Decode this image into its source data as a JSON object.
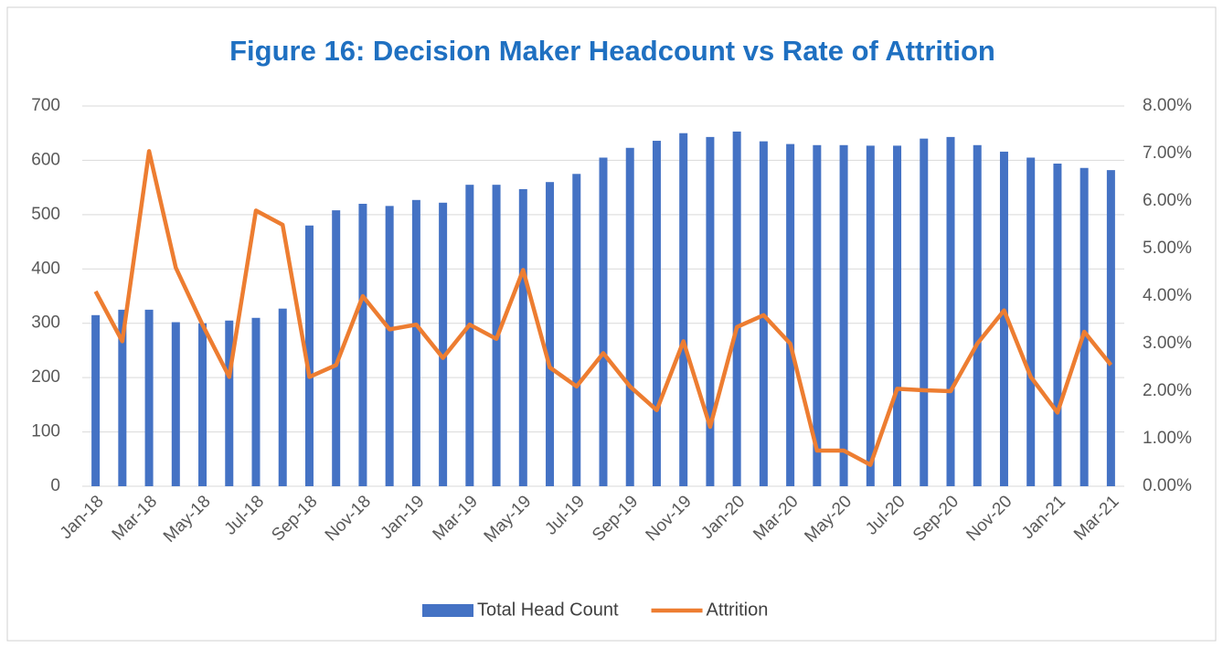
{
  "chart_data": {
    "type": "bar_line",
    "title": "Figure 16: Decision Maker Headcount vs Rate of Attrition",
    "categories": [
      "Jan-18",
      null,
      "Mar-18",
      null,
      "May-18",
      null,
      "Jul-18",
      null,
      "Sep-18",
      null,
      "Nov-18",
      null,
      "Jan-19",
      null,
      "Mar-19",
      null,
      "May-19",
      null,
      "Jul-19",
      null,
      "Sep-19",
      null,
      "Nov-19",
      null,
      "Jan-20",
      null,
      "Mar-20",
      null,
      "May-20",
      null,
      "Jul-20",
      null,
      "Sep-20",
      null,
      "Nov-20",
      null,
      "Jan-21",
      null,
      "Mar-21"
    ],
    "series": [
      {
        "name": "Total Head Count",
        "color": "#4472c4",
        "type": "bar",
        "values": [
          315,
          325,
          325,
          302,
          300,
          305,
          310,
          327,
          480,
          508,
          520,
          516,
          527,
          522,
          555,
          555,
          547,
          560,
          575,
          605,
          623,
          636,
          650,
          643,
          653,
          635,
          630,
          628,
          628,
          627,
          627,
          640,
          643,
          628,
          616,
          605,
          594,
          586,
          582
        ]
      },
      {
        "name": "Attrition",
        "color": "#ed7d31",
        "type": "line",
        "axis": "y2",
        "values": [
          4.1,
          3.05,
          7.05,
          4.6,
          3.4,
          2.3,
          5.8,
          5.5,
          2.3,
          2.55,
          4.0,
          3.3,
          3.4,
          2.7,
          3.4,
          3.1,
          4.55,
          2.5,
          2.1,
          2.8,
          2.1,
          1.6,
          3.05,
          1.25,
          3.35,
          3.6,
          3.0,
          0.75,
          0.75,
          0.45,
          2.05,
          2.02,
          2.0,
          3.0,
          3.7,
          2.3,
          1.55,
          3.25,
          2.55
        ]
      }
    ],
    "ylim": [
      0,
      700
    ],
    "yticks": [
      0,
      100,
      200,
      300,
      400,
      500,
      600,
      700
    ],
    "y2lim": [
      0,
      8
    ],
    "y2ticks": [
      {
        "value": 0,
        "label": "0.00%"
      },
      {
        "value": 1,
        "label": "1.00%"
      },
      {
        "value": 2,
        "label": "2.00%"
      },
      {
        "value": 3,
        "label": "3.00%"
      },
      {
        "value": 4,
        "label": "4.00%"
      },
      {
        "value": 5,
        "label": "5.00%"
      },
      {
        "value": 6,
        "label": "6.00%"
      },
      {
        "value": 7,
        "label": "7.00%"
      },
      {
        "value": 8,
        "label": "8.00%"
      }
    ],
    "grid": true,
    "legend": "bottom"
  }
}
